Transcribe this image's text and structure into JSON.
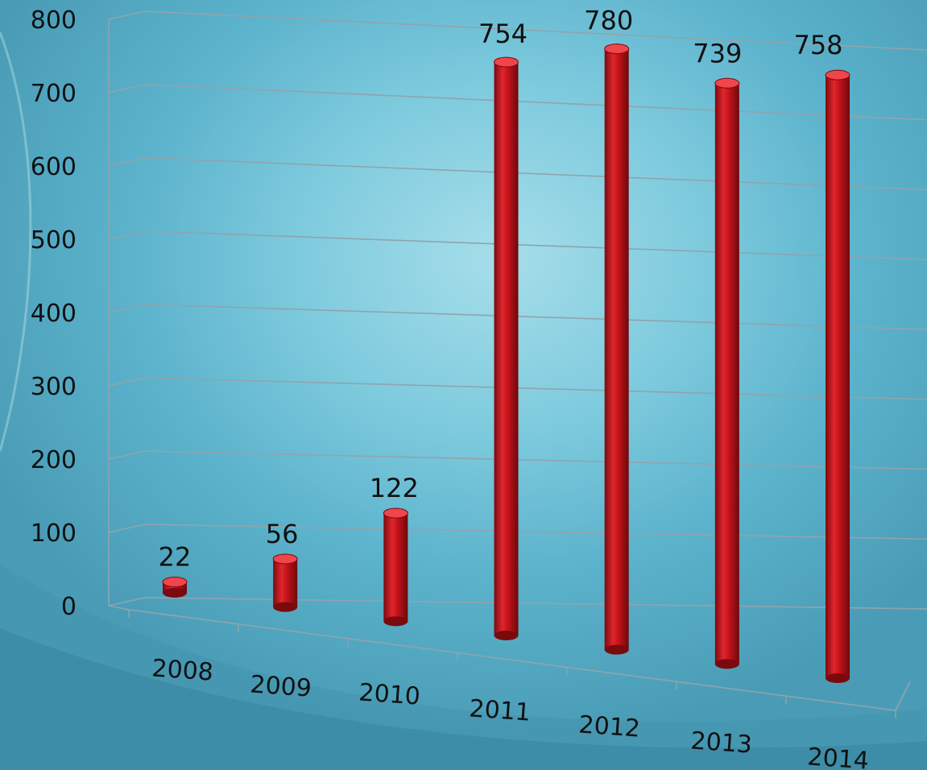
{
  "chart_data": {
    "type": "bar",
    "style": "3d-cylinder",
    "categories": [
      "2008",
      "2009",
      "2010",
      "2011",
      "2012",
      "2013",
      "2014"
    ],
    "values": [
      22,
      56,
      122,
      754,
      780,
      739,
      758
    ],
    "data_labels": [
      "22",
      "56",
      "122",
      "754",
      "780",
      "739",
      "758"
    ],
    "yticks": [
      "0",
      "100",
      "200",
      "300",
      "400",
      "500",
      "600",
      "700",
      "800"
    ],
    "ylim": [
      0,
      800
    ],
    "grid": true,
    "legend": "none",
    "title": "",
    "xlabel": "",
    "ylabel": "",
    "colors": {
      "bar": "#c8141c",
      "bar_dark": "#7a0a0e",
      "bar_light": "#f0454b",
      "grid": "#8fa4ad",
      "text": "#111111"
    }
  }
}
